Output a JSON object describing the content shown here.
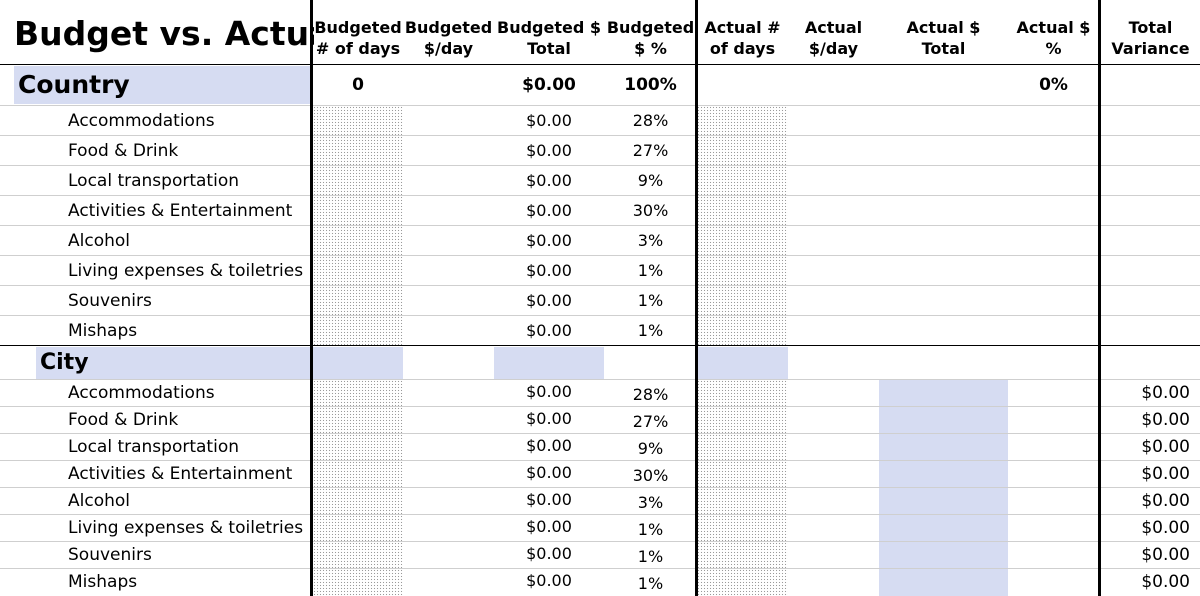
{
  "title": "Budget vs. Actual",
  "headers": {
    "budgeted_days": [
      "Budgeted",
      "# of days"
    ],
    "budgeted_per_day": [
      "Budgeted",
      "$/day"
    ],
    "budgeted_total": [
      "Budgeted $",
      "Total"
    ],
    "budgeted_pct": [
      "Budgeted",
      "$ %"
    ],
    "actual_days": [
      "Actual #",
      "of days"
    ],
    "actual_per_day": [
      "Actual",
      "$/day"
    ],
    "actual_total": [
      "Actual $",
      "Total"
    ],
    "actual_pct": [
      "Actual $",
      "%"
    ],
    "total_variance": [
      "Total",
      "Variance"
    ]
  },
  "country": {
    "label": "Country",
    "budgeted_days": "0",
    "budgeted_total": "$0.00",
    "budgeted_pct": "100%",
    "actual_pct": "0%",
    "rows": [
      {
        "label": "Accommodations",
        "total": "$0.00",
        "pct": "28%"
      },
      {
        "label": "Food & Drink",
        "total": "$0.00",
        "pct": "27%"
      },
      {
        "label": "Local transportation",
        "total": "$0.00",
        "pct": "9%"
      },
      {
        "label": "Activities & Entertainment",
        "total": "$0.00",
        "pct": "30%"
      },
      {
        "label": "Alcohol",
        "total": "$0.00",
        "pct": "3%"
      },
      {
        "label": "Living expenses & toiletries",
        "total": "$0.00",
        "pct": "1%"
      },
      {
        "label": "Souvenirs",
        "total": "$0.00",
        "pct": "1%"
      },
      {
        "label": "Mishaps",
        "total": "$0.00",
        "pct": "1%"
      }
    ]
  },
  "city": {
    "label": "City",
    "rows": [
      {
        "label": "Accommodations",
        "total": "$0.00",
        "pct": "28%",
        "variance": "$0.00"
      },
      {
        "label": "Food & Drink",
        "total": "$0.00",
        "pct": "27%",
        "variance": "$0.00"
      },
      {
        "label": "Local transportation",
        "total": "$0.00",
        "pct": "9%",
        "variance": "$0.00"
      },
      {
        "label": "Activities & Entertainment",
        "total": "$0.00",
        "pct": "30%",
        "variance": "$0.00"
      },
      {
        "label": "Alcohol",
        "total": "$0.00",
        "pct": "3%",
        "variance": "$0.00"
      },
      {
        "label": "Living expenses & toiletries",
        "total": "$0.00",
        "pct": "1%",
        "variance": "$0.00"
      },
      {
        "label": "Souvenirs",
        "total": "$0.00",
        "pct": "1%",
        "variance": "$0.00"
      },
      {
        "label": "Mishaps",
        "total": "$0.00",
        "pct": "1%",
        "variance": "$0.00"
      }
    ]
  },
  "colors": {
    "section_fill": "#d6dcf2",
    "grid": "#cfcfcf",
    "divider": "#000000"
  }
}
